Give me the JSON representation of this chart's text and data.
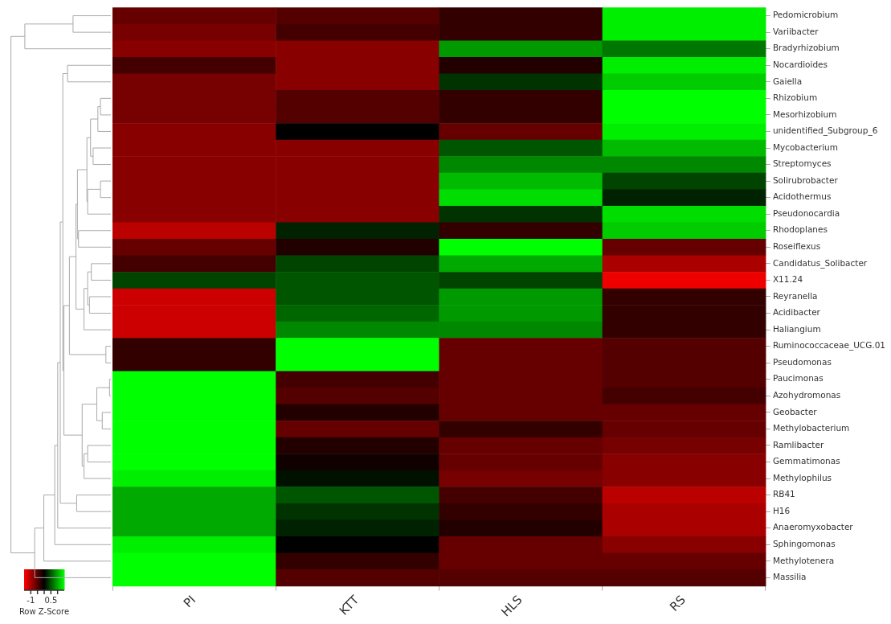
{
  "chart_data": {
    "type": "heatmap",
    "categories": [
      "PI",
      "KTT",
      "HLS",
      "RS"
    ],
    "y_categories": [
      "Pedomicrobium",
      "Variibacter",
      "Bradyrhizobium",
      "Nocardioides",
      "Gaiella",
      "Rhizobium",
      "Mesorhizobium",
      "unidentified_Subgroup_6",
      "Mycobacterium",
      "Streptomyces",
      "Solirubrobacter",
      "Acidothermus",
      "Pseudonocardia",
      "Rhodoplanes",
      "Roseiflexus",
      "Candidatus_Solibacter",
      "X11.24",
      "Reyranella",
      "Acidibacter",
      "Haliangium",
      "Ruminococcaceae_UCG.01",
      "Pseudomonas",
      "Paucimonas",
      "Azohydromonas",
      "Geobacter",
      "Methylobacterium",
      "Ramlibacter",
      "Gemmatimonas",
      "Methylophilus",
      "RB41",
      "H16",
      "Anaeromyxobacter",
      "Sphingomonas",
      "Methylotenera",
      "Massilia"
    ],
    "cells": [
      [
        -0.6,
        -0.5,
        -0.3,
        1.4
      ],
      [
        -0.7,
        -0.4,
        -0.3,
        1.4
      ],
      [
        -0.8,
        -0.8,
        0.9,
        0.7
      ],
      [
        -0.4,
        -0.8,
        -0.2,
        1.4
      ],
      [
        -0.7,
        -0.8,
        0.3,
        1.2
      ],
      [
        -0.7,
        -0.5,
        -0.3,
        1.5
      ],
      [
        -0.7,
        -0.5,
        -0.3,
        1.5
      ],
      [
        -0.8,
        0.0,
        -0.6,
        1.4
      ],
      [
        -0.8,
        -0.8,
        0.5,
        1.1
      ],
      [
        -0.8,
        -0.8,
        0.8,
        0.8
      ],
      [
        -0.8,
        -0.8,
        1.1,
        0.4
      ],
      [
        -0.8,
        -0.8,
        1.3,
        0.2
      ],
      [
        -0.8,
        -0.8,
        0.3,
        1.3
      ],
      [
        -1.1,
        0.2,
        -0.3,
        1.2
      ],
      [
        -0.6,
        -0.2,
        1.5,
        -0.6
      ],
      [
        -0.4,
        0.4,
        1.0,
        -1.0
      ],
      [
        0.4,
        0.5,
        0.4,
        -1.4
      ],
      [
        -1.2,
        0.5,
        0.9,
        -0.3
      ],
      [
        -1.2,
        0.6,
        0.9,
        -0.3
      ],
      [
        -1.2,
        0.8,
        0.8,
        -0.3
      ],
      [
        -0.3,
        1.5,
        -0.6,
        -0.5
      ],
      [
        -0.3,
        1.5,
        -0.6,
        -0.5
      ],
      [
        1.5,
        -0.4,
        -0.6,
        -0.5
      ],
      [
        1.5,
        -0.5,
        -0.6,
        -0.4
      ],
      [
        1.5,
        -0.2,
        -0.6,
        -0.6
      ],
      [
        1.5,
        -0.6,
        -0.3,
        -0.6
      ],
      [
        1.5,
        -0.2,
        -0.6,
        -0.7
      ],
      [
        1.5,
        -0.1,
        -0.6,
        -0.8
      ],
      [
        1.4,
        0.1,
        -0.7,
        -0.8
      ],
      [
        1.0,
        0.5,
        -0.4,
        -1.1
      ],
      [
        1.0,
        0.3,
        -0.3,
        -1.0
      ],
      [
        1.0,
        0.2,
        -0.2,
        -1.0
      ],
      [
        1.4,
        0.0,
        -0.6,
        -0.8
      ],
      [
        1.5,
        -0.3,
        -0.6,
        -0.6
      ],
      [
        1.5,
        -0.5,
        -0.5,
        -0.5
      ]
    ],
    "clim": [
      -1.5,
      1.5
    ],
    "cticks": [
      -1,
      {
        "value": -0.5,
        "label": null
      },
      {
        "value": 0,
        "label": null
      },
      0.5,
      {
        "value": 1,
        "label": null
      }
    ],
    "clabel": "Row Z-Score"
  }
}
